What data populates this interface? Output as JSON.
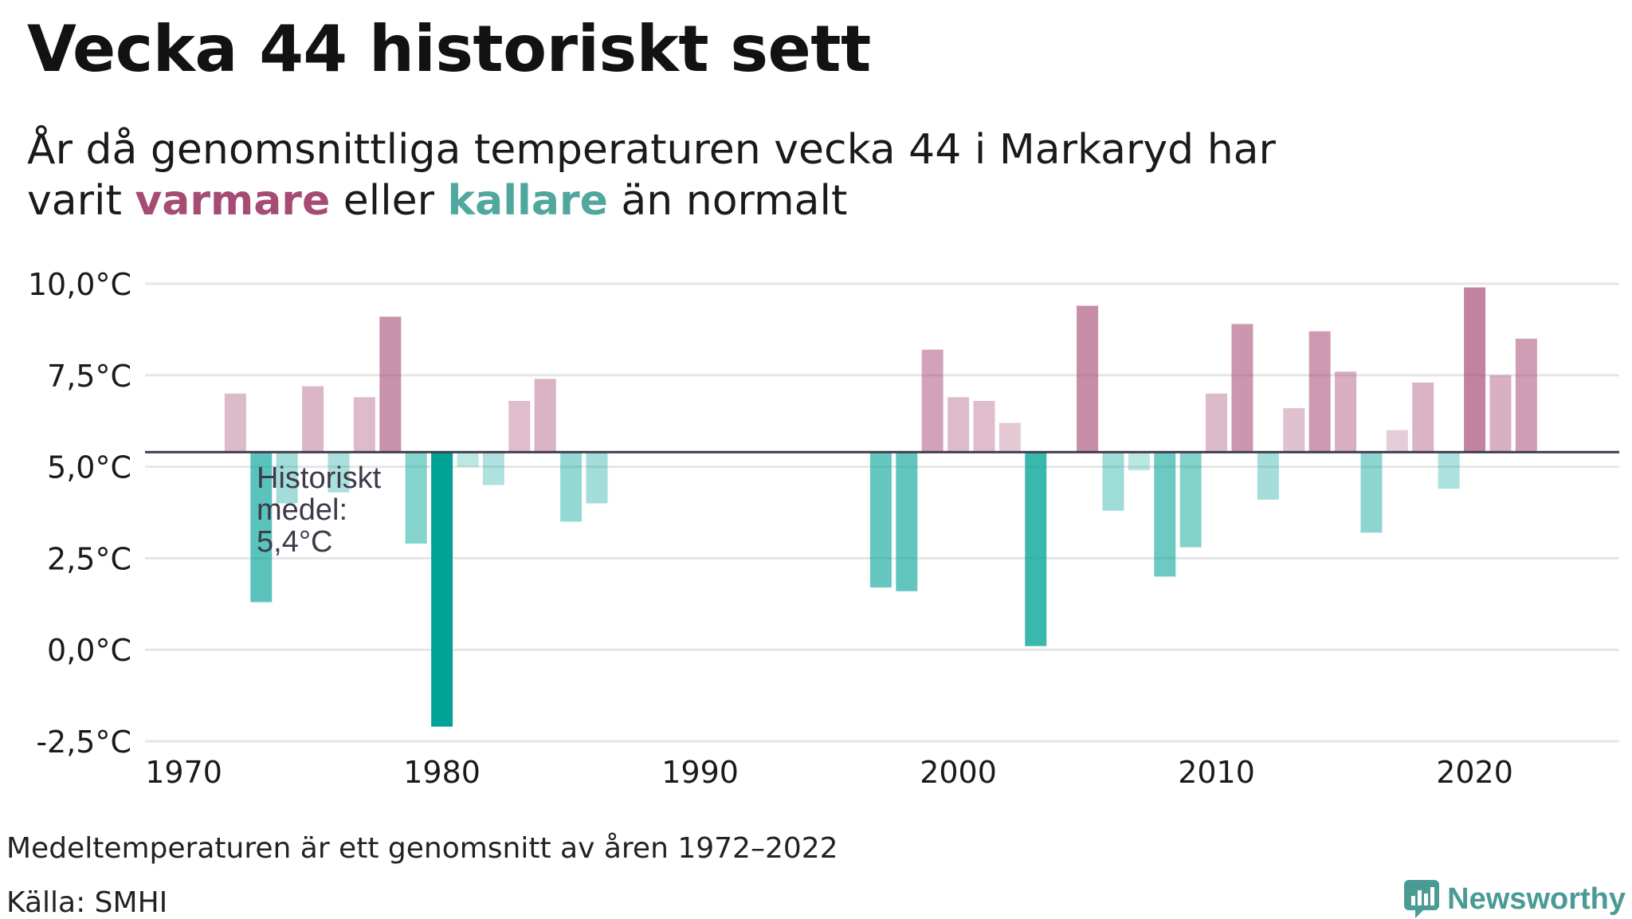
{
  "header": {
    "title": "Vecka 44 historiskt sett",
    "subtitle_line1": "År då genomsnittliga temperaturen vecka 44 i Markaryd har",
    "subtitle_varit": "varit",
    "subtitle_warm": "varmare",
    "subtitle_eller": "eller",
    "subtitle_cold": "kallare",
    "subtitle_end": "än normalt"
  },
  "footer": {
    "note": "Medeltemperaturen är ett genomsnitt av åren 1972–2022",
    "source": "Källa: SMHI",
    "brand": "Newsworthy"
  },
  "colors": {
    "warm": "#a64b74",
    "cold": "#00a396",
    "mean_line": "#3d3a4b",
    "grid": "#e6e6e6",
    "brand": "#4a9a95"
  },
  "chart_data": {
    "type": "bar",
    "title": "Vecka 44 historiskt sett",
    "baseline": 5.4,
    "baseline_label": [
      "Historiskt",
      "medel:",
      "5,4°C"
    ],
    "ylim": [
      -2.5,
      10.0
    ],
    "yticks": [
      -2.5,
      0.0,
      2.5,
      5.0,
      7.5,
      10.0
    ],
    "ytick_labels": [
      "-2,5°C",
      "0,0°C",
      "2,5°C",
      "5,0°C",
      "7,5°C",
      "10,0°C"
    ],
    "xlim": [
      1968.5,
      2025.6
    ],
    "xticks": [
      1970,
      1980,
      1990,
      2000,
      2010,
      2020
    ],
    "xtick_labels": [
      "1970",
      "1980",
      "1990",
      "2000",
      "2010",
      "2020"
    ],
    "grid": true,
    "x": [
      1972,
      1973,
      1974,
      1975,
      1976,
      1977,
      1978,
      1979,
      1980,
      1981,
      1982,
      1983,
      1984,
      1985,
      1986,
      1997,
      1998,
      1999,
      2000,
      2001,
      2002,
      2003,
      2005,
      2006,
      2007,
      2008,
      2009,
      2010,
      2011,
      2012,
      2013,
      2014,
      2015,
      2016,
      2017,
      2018,
      2019,
      2020,
      2021,
      2022
    ],
    "values": [
      7.0,
      1.3,
      4.0,
      7.2,
      4.3,
      6.9,
      9.1,
      2.9,
      -2.1,
      5.0,
      4.5,
      6.8,
      7.4,
      3.5,
      4.0,
      1.7,
      1.6,
      8.2,
      6.9,
      6.8,
      6.2,
      0.1,
      9.4,
      3.8,
      4.9,
      2.0,
      2.8,
      7.0,
      8.9,
      4.1,
      6.6,
      8.7,
      7.6,
      3.2,
      6.0,
      7.3,
      4.4,
      9.9,
      7.5,
      8.5
    ]
  }
}
